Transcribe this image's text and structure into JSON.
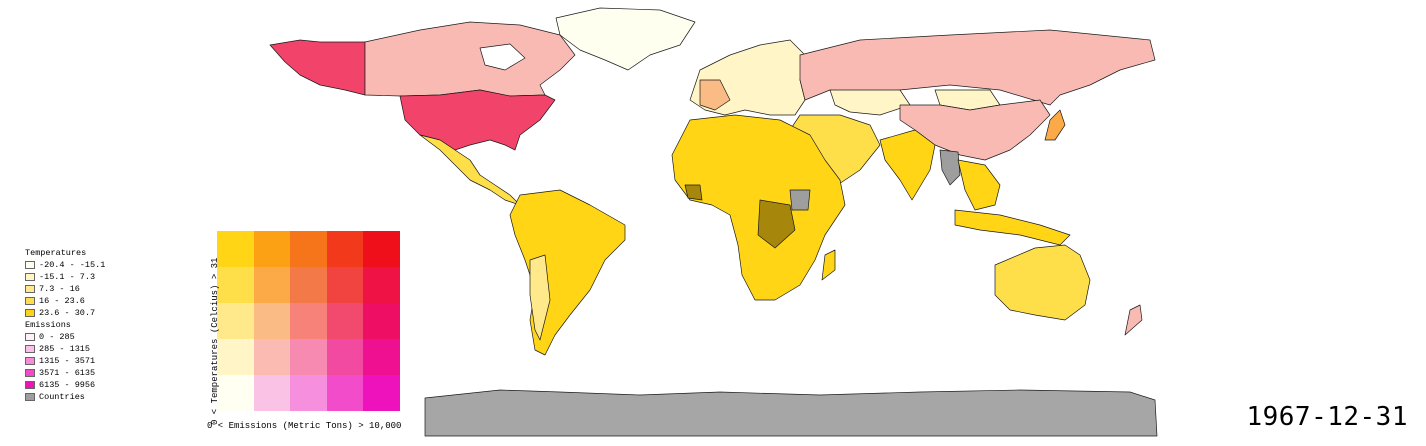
{
  "legend": {
    "temperatures_title": "Temperatures",
    "temperatures": [
      {
        "label": "-20.4 - -15.1",
        "color": "#fffff0"
      },
      {
        "label": "-15.1 - 7.3",
        "color": "#fff5c6"
      },
      {
        "label": "7.3 - 16",
        "color": "#ffe98c"
      },
      {
        "label": "16 - 23.6",
        "color": "#ffdd52"
      },
      {
        "label": "23.6 - 30.7",
        "color": "#ffd21a"
      }
    ],
    "emissions_title": "Emissions",
    "emissions": [
      {
        "label": "0 - 285",
        "color": "#fff0fa"
      },
      {
        "label": "285 - 1315",
        "color": "#fbc0e8"
      },
      {
        "label": "1315 - 3571",
        "color": "#f78bd9"
      },
      {
        "label": "3571 - 6135",
        "color": "#f14cc6"
      },
      {
        "label": "6135 - 9956",
        "color": "#ee12b9"
      }
    ],
    "countries_label": "Countries",
    "countries_color": "#9e9e9e"
  },
  "bivariate": {
    "y_axis_label": "0 < Temperatures (Celcius) > 31",
    "x_axis_label": "0 < Emissions (Metric Tons) > 10,000",
    "rows": [
      [
        "#ffd516",
        "#fca114",
        "#f6741a",
        "#f2391c",
        "#ee0f1a"
      ],
      [
        "#ffdf49",
        "#fbaa47",
        "#f47948",
        "#f14441",
        "#ef1244"
      ],
      [
        "#ffe98a",
        "#fbbb84",
        "#f6827a",
        "#f14a6e",
        "#ee0f65"
      ],
      [
        "#fff5c7",
        "#fbbbb2",
        "#f68ab0",
        "#f24aa0",
        "#ee1090"
      ],
      [
        "#fffff2",
        "#fac3e6",
        "#f68fdd",
        "#f24ccb",
        "#ee12bc"
      ]
    ]
  },
  "date": "1967-12-31"
}
